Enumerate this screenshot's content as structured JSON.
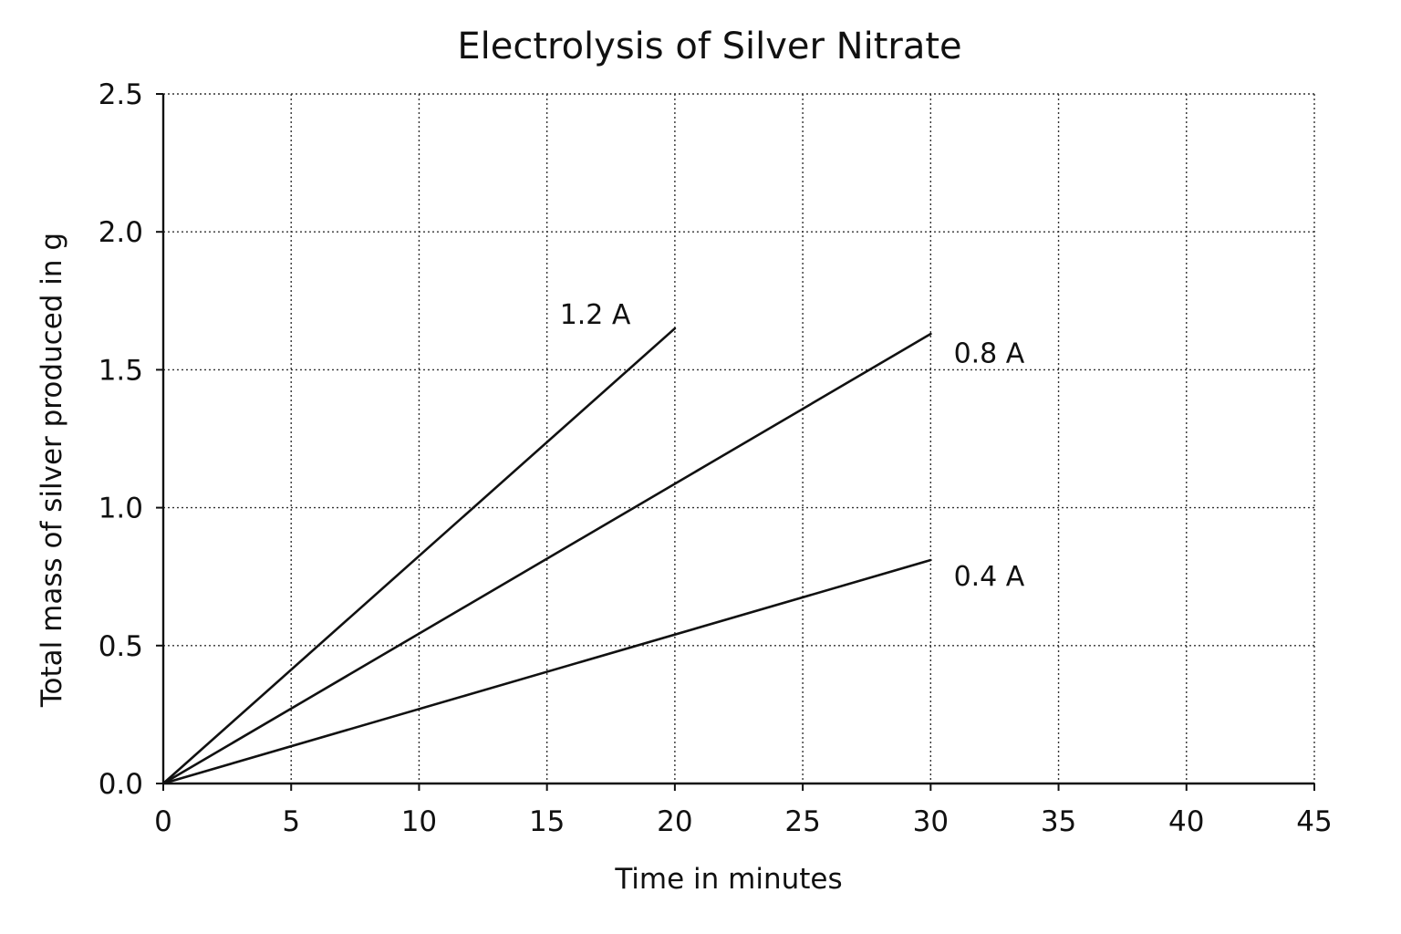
{
  "chart_data": {
    "type": "line",
    "title": "Electrolysis of Silver Nitrate",
    "xlabel": "Time in minutes",
    "ylabel": "Total mass of silver produced in g",
    "xlim": [
      0,
      45
    ],
    "ylim": [
      0,
      2.5
    ],
    "x_ticks": [
      0,
      5,
      10,
      15,
      20,
      25,
      30,
      35,
      40,
      45
    ],
    "y_ticks": [
      0,
      0.5,
      1.0,
      1.5,
      2.0,
      2.5
    ],
    "x_tick_labels": [
      "0",
      "5",
      "10",
      "15",
      "20",
      "25",
      "30",
      "35",
      "40",
      "45"
    ],
    "y_tick_labels": [
      "0.0",
      "0.5",
      "1.0",
      "1.5",
      "2.0",
      "2.5"
    ],
    "grid": true,
    "legend": "none",
    "series": [
      {
        "name": "1.2 A",
        "x": [
          0,
          20
        ],
        "y": [
          0,
          1.65
        ],
        "color": "#111111"
      },
      {
        "name": "0.8 A",
        "x": [
          0,
          30
        ],
        "y": [
          0,
          1.63
        ],
        "color": "#111111"
      },
      {
        "name": "0.4 A",
        "x": [
          0,
          30
        ],
        "y": [
          0,
          0.81
        ],
        "color": "#111111"
      }
    ]
  }
}
